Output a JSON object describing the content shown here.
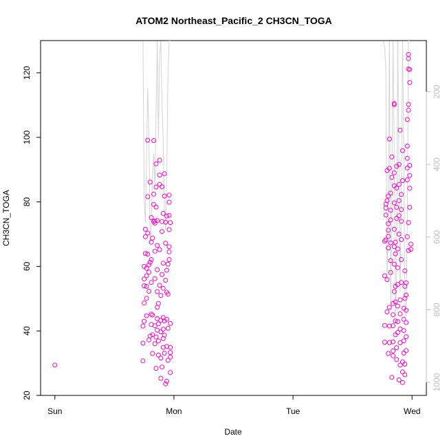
{
  "chart_data": {
    "type": "scatter",
    "title": "ATOM2 Northeast_Pacific_2 CH3CN_TOGA",
    "xlabel": "Date",
    "ylabel": "CH3CN_TOGA",
    "ylim": [
      20,
      130
    ],
    "xlim": [
      -0.12,
      3.12
    ],
    "x_ticks": [
      {
        "value": 0,
        "label": "Sun"
      },
      {
        "value": 1,
        "label": "Mon"
      },
      {
        "value": 2,
        "label": "Tue"
      },
      {
        "value": 3,
        "label": "Wed"
      }
    ],
    "y_ticks": [
      20,
      40,
      60,
      80,
      100,
      120
    ],
    "y2_ticks": [
      200,
      400,
      600,
      800,
      1000
    ],
    "y2lim_inverted": [
      59,
      1036
    ],
    "colors": {
      "points": "#ff00cc",
      "secondary_line": "#d3d3d3"
    },
    "x_unit": "days from Sunday 00:00",
    "points": [
      {
        "x": 0.0,
        "y": 29.4
      },
      {
        "x": 0.74,
        "y": 30.7
      },
      {
        "x": 0.74,
        "y": 36.2
      },
      {
        "x": 0.74,
        "y": 41.5
      },
      {
        "x": 0.75,
        "y": 43.0
      },
      {
        "x": 0.75,
        "y": 48.6
      },
      {
        "x": 0.75,
        "y": 54.0
      },
      {
        "x": 0.75,
        "y": 56.1
      },
      {
        "x": 0.75,
        "y": 60.0
      },
      {
        "x": 0.76,
        "y": 64.0
      },
      {
        "x": 0.76,
        "y": 69.2
      },
      {
        "x": 0.76,
        "y": 71.5
      },
      {
        "x": 0.77,
        "y": 44.7
      },
      {
        "x": 0.77,
        "y": 50.1
      },
      {
        "x": 0.77,
        "y": 53.8
      },
      {
        "x": 0.77,
        "y": 57.1
      },
      {
        "x": 0.77,
        "y": 59.4
      },
      {
        "x": 0.78,
        "y": 63.8
      },
      {
        "x": 0.78,
        "y": 70.3
      },
      {
        "x": 0.78,
        "y": 81.6
      },
      {
        "x": 0.78,
        "y": 99.1
      },
      {
        "x": 0.79,
        "y": 37.2
      },
      {
        "x": 0.79,
        "y": 52.3
      },
      {
        "x": 0.79,
        "y": 58.2
      },
      {
        "x": 0.79,
        "y": 60.5
      },
      {
        "x": 0.8,
        "y": 61.3
      },
      {
        "x": 0.8,
        "y": 86.1
      },
      {
        "x": 0.8,
        "y": 38.4
      },
      {
        "x": 0.81,
        "y": 42.0
      },
      {
        "x": 0.81,
        "y": 45.2
      },
      {
        "x": 0.81,
        "y": 55.0
      },
      {
        "x": 0.81,
        "y": 62.1
      },
      {
        "x": 0.81,
        "y": 67.5
      },
      {
        "x": 0.81,
        "y": 75.1
      },
      {
        "x": 0.82,
        "y": 33.0
      },
      {
        "x": 0.82,
        "y": 38.8
      },
      {
        "x": 0.82,
        "y": 44.9
      },
      {
        "x": 0.82,
        "y": 68.8
      },
      {
        "x": 0.83,
        "y": 73.9
      },
      {
        "x": 0.83,
        "y": 79.2
      },
      {
        "x": 0.83,
        "y": 82.4
      },
      {
        "x": 0.83,
        "y": 99.0
      },
      {
        "x": 0.84,
        "y": 36.0
      },
      {
        "x": 0.84,
        "y": 41.6
      },
      {
        "x": 0.84,
        "y": 56.2
      },
      {
        "x": 0.84,
        "y": 64.7
      },
      {
        "x": 0.84,
        "y": 73.4
      },
      {
        "x": 0.84,
        "y": 74.1
      },
      {
        "x": 0.85,
        "y": 78.4
      },
      {
        "x": 0.85,
        "y": 84.6
      },
      {
        "x": 0.85,
        "y": 91.8
      },
      {
        "x": 0.85,
        "y": 28.4
      },
      {
        "x": 0.85,
        "y": 38.1
      },
      {
        "x": 0.86,
        "y": 40.2
      },
      {
        "x": 0.86,
        "y": 43.8
      },
      {
        "x": 0.86,
        "y": 47.3
      },
      {
        "x": 0.86,
        "y": 52.2
      },
      {
        "x": 0.86,
        "y": 59.0
      },
      {
        "x": 0.86,
        "y": 66.5
      },
      {
        "x": 0.86,
        "y": 74.2
      },
      {
        "x": 0.87,
        "y": 32.5
      },
      {
        "x": 0.87,
        "y": 36.9
      },
      {
        "x": 0.87,
        "y": 42.2
      },
      {
        "x": 0.87,
        "y": 48.5
      },
      {
        "x": 0.88,
        "y": 54.1
      },
      {
        "x": 0.88,
        "y": 65.2
      },
      {
        "x": 0.88,
        "y": 85.4
      },
      {
        "x": 0.88,
        "y": 88.3
      },
      {
        "x": 0.88,
        "y": 92.9
      },
      {
        "x": 0.89,
        "y": 25.3
      },
      {
        "x": 0.89,
        "y": 31.6
      },
      {
        "x": 0.89,
        "y": 39.7
      },
      {
        "x": 0.89,
        "y": 43.3
      },
      {
        "x": 0.89,
        "y": 51.0
      },
      {
        "x": 0.9,
        "y": 57.5
      },
      {
        "x": 0.9,
        "y": 70.8
      },
      {
        "x": 0.9,
        "y": 73.9
      },
      {
        "x": 0.9,
        "y": 84.7
      },
      {
        "x": 0.9,
        "y": 28.8
      },
      {
        "x": 0.91,
        "y": 34.9
      },
      {
        "x": 0.91,
        "y": 37.6
      },
      {
        "x": 0.91,
        "y": 40.5
      },
      {
        "x": 0.91,
        "y": 44.1
      },
      {
        "x": 0.91,
        "y": 53.2
      },
      {
        "x": 0.91,
        "y": 61.0
      },
      {
        "x": 0.91,
        "y": 76.4
      },
      {
        "x": 0.92,
        "y": 81.8
      },
      {
        "x": 0.92,
        "y": 88.7
      },
      {
        "x": 0.92,
        "y": 33.1
      },
      {
        "x": 0.92,
        "y": 38.7
      },
      {
        "x": 0.92,
        "y": 43.1
      },
      {
        "x": 0.93,
        "y": 55.7
      },
      {
        "x": 0.93,
        "y": 67.2
      },
      {
        "x": 0.93,
        "y": 73.7
      },
      {
        "x": 0.93,
        "y": 23.6
      },
      {
        "x": 0.94,
        "y": 24.4
      },
      {
        "x": 0.94,
        "y": 35.2
      },
      {
        "x": 0.94,
        "y": 43.6
      },
      {
        "x": 0.94,
        "y": 52.0
      },
      {
        "x": 0.94,
        "y": 58.8
      },
      {
        "x": 0.94,
        "y": 75.6
      },
      {
        "x": 0.95,
        "y": 30.9
      },
      {
        "x": 0.95,
        "y": 40.8
      },
      {
        "x": 0.95,
        "y": 51.4
      },
      {
        "x": 0.95,
        "y": 60.7
      },
      {
        "x": 0.96,
        "y": 62.1
      },
      {
        "x": 0.96,
        "y": 64.5
      },
      {
        "x": 0.96,
        "y": 66.1
      },
      {
        "x": 0.96,
        "y": 71.4
      },
      {
        "x": 0.96,
        "y": 75.8
      },
      {
        "x": 0.96,
        "y": 79.9
      },
      {
        "x": 0.96,
        "y": 82.1
      },
      {
        "x": 0.97,
        "y": 27.1
      },
      {
        "x": 0.97,
        "y": 31.9
      },
      {
        "x": 0.97,
        "y": 33.3
      },
      {
        "x": 0.97,
        "y": 34.9
      },
      {
        "x": 0.97,
        "y": 42.3
      },
      {
        "x": 0.97,
        "y": 73.6
      },
      {
        "x": 2.77,
        "y": 36.5
      },
      {
        "x": 2.77,
        "y": 41.7
      },
      {
        "x": 2.77,
        "y": 57.1
      },
      {
        "x": 2.77,
        "y": 67.8
      },
      {
        "x": 2.78,
        "y": 68.2
      },
      {
        "x": 2.78,
        "y": 75.9
      },
      {
        "x": 2.78,
        "y": 78.1
      },
      {
        "x": 2.78,
        "y": 79.3
      },
      {
        "x": 2.79,
        "y": 80.4
      },
      {
        "x": 2.79,
        "y": 89.7
      },
      {
        "x": 2.79,
        "y": 45.9
      },
      {
        "x": 2.79,
        "y": 55.9
      },
      {
        "x": 2.8,
        "y": 65.7
      },
      {
        "x": 2.8,
        "y": 69.3
      },
      {
        "x": 2.8,
        "y": 71.2
      },
      {
        "x": 2.8,
        "y": 73.2
      },
      {
        "x": 2.8,
        "y": 81.8
      },
      {
        "x": 2.81,
        "y": 90.4
      },
      {
        "x": 2.81,
        "y": 99.5
      },
      {
        "x": 2.8,
        "y": 33.0
      },
      {
        "x": 2.81,
        "y": 36.4
      },
      {
        "x": 2.81,
        "y": 41.5
      },
      {
        "x": 2.81,
        "y": 47.3
      },
      {
        "x": 2.82,
        "y": 58.1
      },
      {
        "x": 2.82,
        "y": 61.8
      },
      {
        "x": 2.82,
        "y": 67.3
      },
      {
        "x": 2.82,
        "y": 74.4
      },
      {
        "x": 2.82,
        "y": 77.4
      },
      {
        "x": 2.82,
        "y": 82.7
      },
      {
        "x": 2.83,
        "y": 87.6
      },
      {
        "x": 2.83,
        "y": 93.9
      },
      {
        "x": 2.83,
        "y": 25.6
      },
      {
        "x": 2.84,
        "y": 32.3
      },
      {
        "x": 2.84,
        "y": 33.8
      },
      {
        "x": 2.84,
        "y": 36.6
      },
      {
        "x": 2.84,
        "y": 41.6
      },
      {
        "x": 2.84,
        "y": 45.0
      },
      {
        "x": 2.84,
        "y": 48.5
      },
      {
        "x": 2.85,
        "y": 52.2
      },
      {
        "x": 2.85,
        "y": 60.7
      },
      {
        "x": 2.85,
        "y": 66.1
      },
      {
        "x": 2.85,
        "y": 71.5
      },
      {
        "x": 2.85,
        "y": 79.7
      },
      {
        "x": 2.85,
        "y": 85.0
      },
      {
        "x": 2.85,
        "y": 89.0
      },
      {
        "x": 2.85,
        "y": 110.5
      },
      {
        "x": 2.85,
        "y": 110.1
      },
      {
        "x": 2.86,
        "y": 38.8
      },
      {
        "x": 2.86,
        "y": 43.1
      },
      {
        "x": 2.86,
        "y": 49.0
      },
      {
        "x": 2.86,
        "y": 53.8
      },
      {
        "x": 2.86,
        "y": 63.9
      },
      {
        "x": 2.86,
        "y": 67.5
      },
      {
        "x": 2.87,
        "y": 74.9
      },
      {
        "x": 2.87,
        "y": 78.3
      },
      {
        "x": 2.87,
        "y": 84.3
      },
      {
        "x": 2.87,
        "y": 91.0
      },
      {
        "x": 2.87,
        "y": 31.1
      },
      {
        "x": 2.87,
        "y": 34.8
      },
      {
        "x": 2.88,
        "y": 39.5
      },
      {
        "x": 2.88,
        "y": 42.9
      },
      {
        "x": 2.88,
        "y": 47.7
      },
      {
        "x": 2.88,
        "y": 54.4
      },
      {
        "x": 2.88,
        "y": 59.6
      },
      {
        "x": 2.88,
        "y": 65.4
      },
      {
        "x": 2.89,
        "y": 70.0
      },
      {
        "x": 2.89,
        "y": 75.7
      },
      {
        "x": 2.89,
        "y": 80.4
      },
      {
        "x": 2.89,
        "y": 85.4
      },
      {
        "x": 2.89,
        "y": 91.6
      },
      {
        "x": 2.9,
        "y": 102.2
      },
      {
        "x": 2.89,
        "y": 24.8
      },
      {
        "x": 2.9,
        "y": 29.4
      },
      {
        "x": 2.9,
        "y": 36.3
      },
      {
        "x": 2.9,
        "y": 40.6
      },
      {
        "x": 2.9,
        "y": 45.3
      },
      {
        "x": 2.9,
        "y": 49.6
      },
      {
        "x": 2.91,
        "y": 55.0
      },
      {
        "x": 2.91,
        "y": 62.1
      },
      {
        "x": 2.91,
        "y": 68.3
      },
      {
        "x": 2.91,
        "y": 74.0
      },
      {
        "x": 2.91,
        "y": 77.6
      },
      {
        "x": 2.91,
        "y": 82.3
      },
      {
        "x": 2.92,
        "y": 86.6
      },
      {
        "x": 2.92,
        "y": 95.9
      },
      {
        "x": 2.92,
        "y": 24.0
      },
      {
        "x": 2.92,
        "y": 27.3
      },
      {
        "x": 2.92,
        "y": 30.4
      },
      {
        "x": 2.93,
        "y": 33.1
      },
      {
        "x": 2.93,
        "y": 36.9
      },
      {
        "x": 2.93,
        "y": 40.1
      },
      {
        "x": 2.93,
        "y": 43.6
      },
      {
        "x": 2.93,
        "y": 47.0
      },
      {
        "x": 2.94,
        "y": 50.1
      },
      {
        "x": 2.94,
        "y": 53.8
      },
      {
        "x": 2.94,
        "y": 58.6
      },
      {
        "x": 2.94,
        "y": 26.4
      },
      {
        "x": 2.94,
        "y": 29.7
      },
      {
        "x": 2.95,
        "y": 33.9
      },
      {
        "x": 2.95,
        "y": 38.2
      },
      {
        "x": 2.95,
        "y": 42.6
      },
      {
        "x": 2.95,
        "y": 46.4
      },
      {
        "x": 2.95,
        "y": 51.1
      },
      {
        "x": 2.95,
        "y": 54.9
      },
      {
        "x": 2.96,
        "y": 69.2
      },
      {
        "x": 2.96,
        "y": 86.8
      },
      {
        "x": 2.96,
        "y": 90.5
      },
      {
        "x": 2.96,
        "y": 93.5
      },
      {
        "x": 2.96,
        "y": 97.3
      },
      {
        "x": 2.96,
        "y": 105.5
      },
      {
        "x": 2.97,
        "y": 108.4
      },
      {
        "x": 2.97,
        "y": 110.2
      },
      {
        "x": 2.97,
        "y": 121.2
      },
      {
        "x": 2.97,
        "y": 124.4
      },
      {
        "x": 2.97,
        "y": 125.7
      },
      {
        "x": 2.97,
        "y": 64.9
      },
      {
        "x": 2.97,
        "y": 73.6
      },
      {
        "x": 2.98,
        "y": 78.3
      },
      {
        "x": 2.98,
        "y": 84.2
      },
      {
        "x": 2.98,
        "y": 88.2
      },
      {
        "x": 2.98,
        "y": 91.3
      },
      {
        "x": 2.98,
        "y": 117.0
      },
      {
        "x": 2.98,
        "y": 121.0
      },
      {
        "x": 2.99,
        "y": 65.3
      },
      {
        "x": 2.99,
        "y": 66.9
      }
    ],
    "secondary_line": [
      {
        "x": 0.74,
        "y2": 60
      },
      {
        "x": 0.75,
        "y2": 480
      },
      {
        "x": 0.76,
        "y2": 560
      },
      {
        "x": 0.77,
        "y2": 380
      },
      {
        "x": 0.78,
        "y2": 190
      },
      {
        "x": 0.79,
        "y2": 330
      },
      {
        "x": 0.8,
        "y2": 620
      },
      {
        "x": 0.81,
        "y2": 560
      },
      {
        "x": 0.82,
        "y2": 430
      },
      {
        "x": 0.83,
        "y2": 370
      },
      {
        "x": 0.84,
        "y2": 460
      },
      {
        "x": 0.85,
        "y2": 250
      },
      {
        "x": 0.86,
        "y2": 60
      },
      {
        "x": 0.87,
        "y2": 330
      },
      {
        "x": 0.88,
        "y2": 100
      },
      {
        "x": 0.89,
        "y2": 60
      },
      {
        "x": 0.9,
        "y2": 240
      },
      {
        "x": 0.91,
        "y2": 330
      },
      {
        "x": 0.92,
        "y2": 520
      },
      {
        "x": 0.93,
        "y2": 580
      },
      {
        "x": 0.94,
        "y2": 420
      },
      {
        "x": 0.95,
        "y2": 150
      },
      {
        "x": 0.96,
        "y2": 60
      },
      {
        "x": 0.97,
        "y2": 60
      },
      {
        "x": 2.76,
        "y2": 60
      },
      {
        "x": 2.77,
        "y2": 80
      },
      {
        "x": 2.78,
        "y2": 140
      },
      {
        "x": 2.79,
        "y2": 720
      },
      {
        "x": 2.8,
        "y2": 560
      },
      {
        "x": 2.81,
        "y2": 60
      },
      {
        "x": 2.82,
        "y2": 800
      },
      {
        "x": 2.83,
        "y2": 480
      },
      {
        "x": 2.84,
        "y2": 60
      },
      {
        "x": 2.85,
        "y2": 350
      },
      {
        "x": 2.86,
        "y2": 820
      },
      {
        "x": 2.87,
        "y2": 700
      },
      {
        "x": 2.88,
        "y2": 60
      },
      {
        "x": 2.89,
        "y2": 430
      },
      {
        "x": 2.9,
        "y2": 750
      },
      {
        "x": 2.91,
        "y2": 500
      },
      {
        "x": 2.92,
        "y2": 60
      },
      {
        "x": 2.93,
        "y2": 330
      },
      {
        "x": 2.94,
        "y2": 780
      },
      {
        "x": 2.95,
        "y2": 820
      },
      {
        "x": 2.96,
        "y2": 560
      },
      {
        "x": 2.97,
        "y2": 60
      },
      {
        "x": 2.98,
        "y2": 60
      }
    ]
  }
}
